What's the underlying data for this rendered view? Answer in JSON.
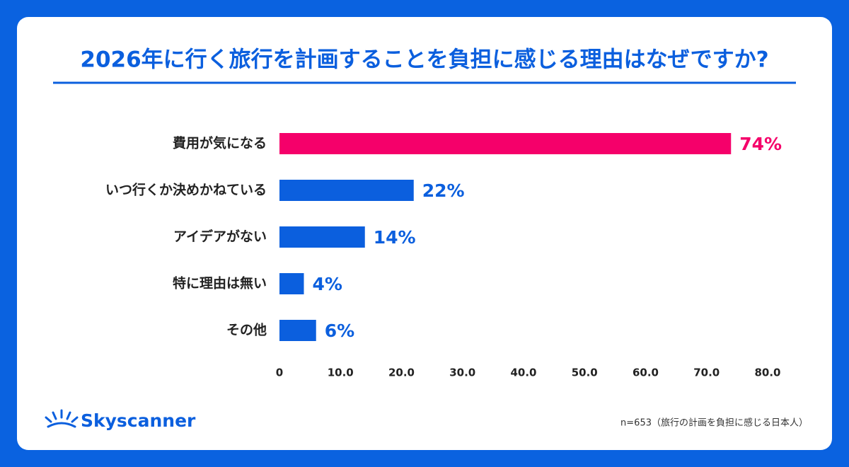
{
  "chart_data": {
    "type": "bar",
    "orientation": "horizontal",
    "title": "2026年に行く旅行を計画することを負担に感じる理由はなぜですか?",
    "categories": [
      "費用が気になる",
      "いつ行くか決めかねている",
      "アイデアがない",
      "特に理由は無い",
      "その他"
    ],
    "values": [
      74,
      22,
      14,
      4,
      6
    ],
    "value_labels": [
      "74%",
      "22%",
      "14%",
      "4%",
      "6%"
    ],
    "colors": [
      "#f5006a",
      "#0b5fde",
      "#0b5fde",
      "#0b5fde",
      "#0b5fde"
    ],
    "xlim": [
      0,
      80
    ],
    "xticks": [
      0,
      {
        "value": 10,
        "label": "10.0"
      },
      {
        "value": 20,
        "label": "20.0"
      },
      {
        "value": 30,
        "label": "30.0"
      },
      {
        "value": 40,
        "label": "40.0"
      },
      {
        "value": 50,
        "label": "50.0"
      },
      {
        "value": 60,
        "label": "60.0"
      },
      {
        "value": 70,
        "label": "70.0"
      },
      {
        "value": 80,
        "label": "80.0"
      }
    ],
    "note": "n=653（旅行の計画を負担に感じる日本人）",
    "brand": "Skyscanner"
  }
}
